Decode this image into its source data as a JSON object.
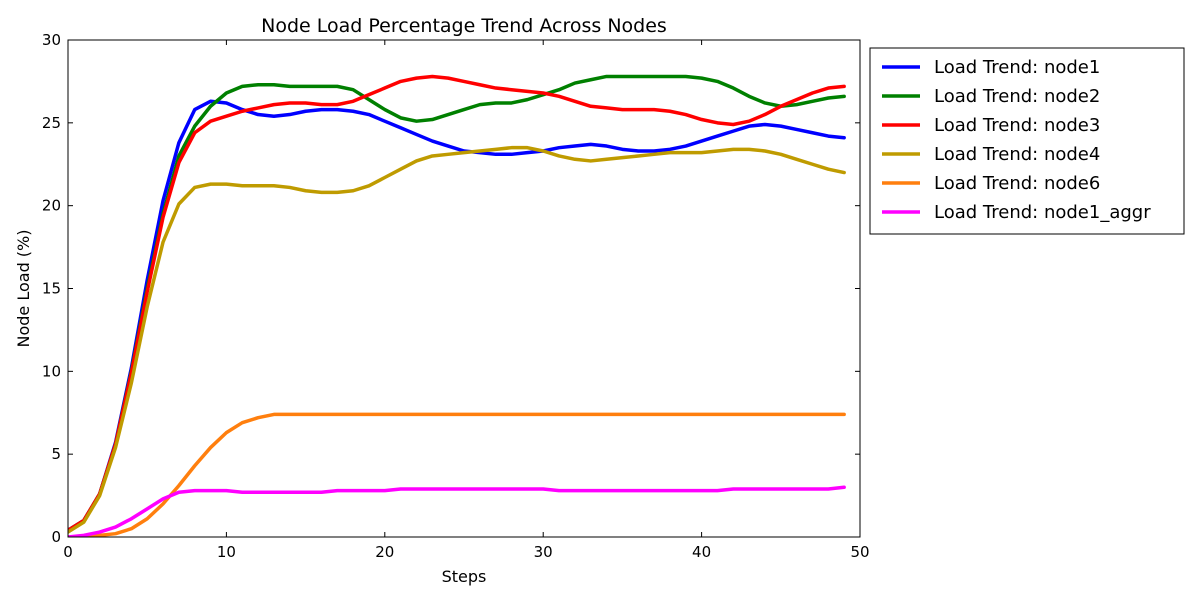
{
  "chart_data": {
    "type": "line",
    "title": "Node Load Percentage Trend Across Nodes",
    "xlabel": "Steps",
    "ylabel": "Node Load (%)",
    "xlim": [
      0,
      50
    ],
    "ylim": [
      0,
      30
    ],
    "xticks": [
      0,
      10,
      20,
      30,
      40,
      50
    ],
    "yticks": [
      0,
      5,
      10,
      15,
      20,
      25,
      30
    ],
    "grid": false,
    "legend_position": "outside-right",
    "x": [
      0,
      1,
      2,
      3,
      4,
      5,
      6,
      7,
      8,
      9,
      10,
      11,
      12,
      13,
      14,
      15,
      16,
      17,
      18,
      19,
      20,
      21,
      22,
      23,
      24,
      25,
      26,
      27,
      28,
      29,
      30,
      31,
      32,
      33,
      34,
      35,
      36,
      37,
      38,
      39,
      40,
      41,
      42,
      43,
      44,
      45,
      46,
      47,
      48,
      49
    ],
    "series": [
      {
        "name": "Load Trend: node1",
        "color": "#0000ff",
        "values": [
          0.4,
          1.0,
          2.6,
          5.7,
          10.2,
          15.5,
          20.3,
          23.8,
          25.8,
          26.3,
          26.2,
          25.8,
          25.5,
          25.4,
          25.5,
          25.7,
          25.8,
          25.8,
          25.7,
          25.5,
          25.1,
          24.7,
          24.3,
          23.9,
          23.6,
          23.3,
          23.2,
          23.1,
          23.1,
          23.2,
          23.3,
          23.5,
          23.6,
          23.7,
          23.6,
          23.4,
          23.3,
          23.3,
          23.4,
          23.6,
          23.9,
          24.2,
          24.5,
          24.8,
          24.9,
          24.8,
          24.6,
          24.4,
          24.2,
          24.1
        ]
      },
      {
        "name": "Load Trend: node2",
        "color": "#008000",
        "values": [
          0.4,
          1.0,
          2.6,
          5.6,
          10.0,
          15.0,
          19.5,
          23.0,
          24.8,
          26.0,
          26.8,
          27.2,
          27.3,
          27.3,
          27.2,
          27.2,
          27.2,
          27.2,
          27.0,
          26.4,
          25.8,
          25.3,
          25.1,
          25.2,
          25.5,
          25.8,
          26.1,
          26.2,
          26.2,
          26.4,
          26.7,
          27.0,
          27.4,
          27.6,
          27.8,
          27.8,
          27.8,
          27.8,
          27.8,
          27.8,
          27.7,
          27.5,
          27.1,
          26.6,
          26.2,
          26.0,
          26.1,
          26.3,
          26.5,
          26.6
        ]
      },
      {
        "name": "Load Trend: node3",
        "color": "#ff0000",
        "values": [
          0.4,
          1.0,
          2.6,
          5.6,
          9.9,
          14.8,
          19.3,
          22.6,
          24.4,
          25.1,
          25.4,
          25.7,
          25.9,
          26.1,
          26.2,
          26.2,
          26.1,
          26.1,
          26.3,
          26.7,
          27.1,
          27.5,
          27.7,
          27.8,
          27.7,
          27.5,
          27.3,
          27.1,
          27.0,
          26.9,
          26.8,
          26.6,
          26.3,
          26.0,
          25.9,
          25.8,
          25.8,
          25.8,
          25.7,
          25.5,
          25.2,
          25.0,
          24.9,
          25.1,
          25.5,
          26.0,
          26.4,
          26.8,
          27.1,
          27.2
        ]
      },
      {
        "name": "Load Trend: node4",
        "color": "#bf9b00",
        "values": [
          0.3,
          0.9,
          2.5,
          5.4,
          9.3,
          13.9,
          17.8,
          20.1,
          21.1,
          21.3,
          21.3,
          21.2,
          21.2,
          21.2,
          21.1,
          20.9,
          20.8,
          20.8,
          20.9,
          21.2,
          21.7,
          22.2,
          22.7,
          23.0,
          23.1,
          23.2,
          23.3,
          23.4,
          23.5,
          23.5,
          23.3,
          23.0,
          22.8,
          22.7,
          22.8,
          22.9,
          23.0,
          23.1,
          23.2,
          23.2,
          23.2,
          23.3,
          23.4,
          23.4,
          23.3,
          23.1,
          22.8,
          22.5,
          22.2,
          22.0
        ]
      },
      {
        "name": "Load Trend: node6",
        "color": "#ff7f0e",
        "values": [
          0.0,
          0.0,
          0.1,
          0.2,
          0.5,
          1.1,
          2.0,
          3.1,
          4.3,
          5.4,
          6.3,
          6.9,
          7.2,
          7.4,
          7.4,
          7.4,
          7.4,
          7.4,
          7.4,
          7.4,
          7.4,
          7.4,
          7.4,
          7.4,
          7.4,
          7.4,
          7.4,
          7.4,
          7.4,
          7.4,
          7.4,
          7.4,
          7.4,
          7.4,
          7.4,
          7.4,
          7.4,
          7.4,
          7.4,
          7.4,
          7.4,
          7.4,
          7.4,
          7.4,
          7.4,
          7.4,
          7.4,
          7.4,
          7.4,
          7.4
        ]
      },
      {
        "name": "Load Trend: node1_aggr",
        "color": "#ff00ff",
        "values": [
          0.0,
          0.1,
          0.3,
          0.6,
          1.1,
          1.7,
          2.3,
          2.7,
          2.8,
          2.8,
          2.8,
          2.7,
          2.7,
          2.7,
          2.7,
          2.7,
          2.7,
          2.8,
          2.8,
          2.8,
          2.8,
          2.9,
          2.9,
          2.9,
          2.9,
          2.9,
          2.9,
          2.9,
          2.9,
          2.9,
          2.9,
          2.8,
          2.8,
          2.8,
          2.8,
          2.8,
          2.8,
          2.8,
          2.8,
          2.8,
          2.8,
          2.8,
          2.9,
          2.9,
          2.9,
          2.9,
          2.9,
          2.9,
          2.9,
          3.0
        ]
      }
    ]
  }
}
